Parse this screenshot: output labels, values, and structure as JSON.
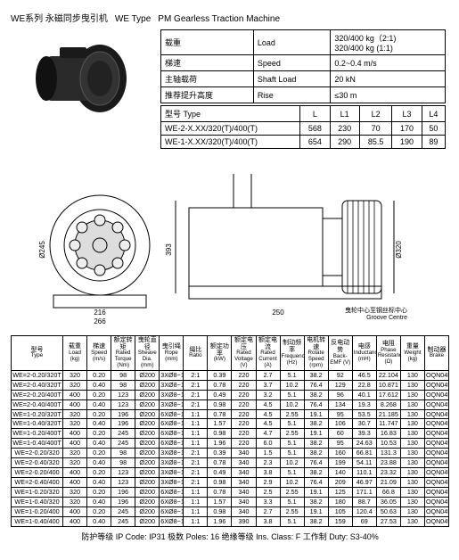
{
  "title": {
    "series": "WE系列 永磁同步曳引机",
    "type_label": "WE   Type",
    "en": "PM Gearless Traction Machine"
  },
  "spec": {
    "rows": [
      {
        "cn": "载重",
        "en": "Load",
        "val": "320/400 kg（2:1)\n320/400 kg (1:1)"
      },
      {
        "cn": "梯速",
        "en": "Speed",
        "val": "0.2~0.4 m/s"
      },
      {
        "cn": "主轴载荷",
        "en": "Shaft Load",
        "val": "20 kN"
      },
      {
        "cn": "推荐提升高度",
        "en": "Rise",
        "val": "≤30 m"
      }
    ],
    "dim_header": {
      "cn": "型号 Type",
      "cols": [
        "L",
        "L1",
        "L2",
        "L3",
        "L4"
      ]
    },
    "dim_rows": [
      {
        "type": "WE-2-X.XX/320(T)/400(T)",
        "v": [
          "568",
          "230",
          "70",
          "170",
          "50"
        ]
      },
      {
        "type": "WE-1-X.XX/320(T)/400(T)",
        "v": [
          "654",
          "290",
          "85.5",
          "190",
          "89"
        ]
      }
    ]
  },
  "diagram_labels": {
    "dims": [
      "393",
      "Ø320",
      "266",
      "Ø245",
      "216",
      "250",
      "Ø200"
    ],
    "note_cn": "曳轮中心至钢丝标中心",
    "note_en": "Groove Centre"
  },
  "data": {
    "headers": [
      {
        "cn": "型号",
        "en": "Type"
      },
      {
        "cn": "载重",
        "en": "Load (kg)"
      },
      {
        "cn": "梯速",
        "en": "Speed (m/s)"
      },
      {
        "cn": "额定转矩",
        "en": "Rated Torque (Nm)"
      },
      {
        "cn": "曳轮直径",
        "en": "Sheave Dia. (mm)"
      },
      {
        "cn": "曳引绳",
        "en": "Rope (mm)"
      },
      {
        "cn": "绳比",
        "en": "Ratio"
      },
      {
        "cn": "额定功率",
        "en": "(kW)"
      },
      {
        "cn": "额定电压",
        "en": "Rated Voltage (V)"
      },
      {
        "cn": "额定电流",
        "en": "Rated Current (A)"
      },
      {
        "cn": "制动频率",
        "en": "Frequency (Hz)"
      },
      {
        "cn": "电机转速",
        "en": "Rotate Speed (rpm)"
      },
      {
        "cn": "反电动势",
        "en": "Back-EMF (V)"
      },
      {
        "cn": "电感",
        "en": "Inductance (mH)"
      },
      {
        "cn": "电阻",
        "en": "Phase Resistance (Ω)"
      },
      {
        "cn": "重量",
        "en": "Weight (kg)"
      },
      {
        "cn": "制动器",
        "en": "Brake"
      }
    ],
    "rows": [
      [
        "WE=2-0.20/320T",
        "320",
        "0.20",
        "98",
        "Ø200",
        "3XØ8~13",
        "2:1",
        "0.39",
        "220",
        "2.7",
        "5.1",
        "38.2",
        "92",
        "46.5",
        "22.104",
        "130",
        "OQN045"
      ],
      [
        "WE=2-0.40/320T",
        "320",
        "0.40",
        "98",
        "Ø200",
        "3XØ8~13",
        "2:1",
        "0.78",
        "220",
        "3.7",
        "10.2",
        "76.4",
        "129",
        "22.8",
        "10.871",
        "130",
        "OQN045"
      ],
      [
        "WE=2-0.20/400T",
        "400",
        "0.20",
        "123",
        "Ø200",
        "3XØ8~13",
        "2:1",
        "0.49",
        "220",
        "3.2",
        "5.1",
        "38.2",
        "96",
        "40.1",
        "17.612",
        "130",
        "OQN045"
      ],
      [
        "WE=2-0.40/400T",
        "400",
        "0.40",
        "123",
        "Ø200",
        "3XØ8~13",
        "2:1",
        "0.98",
        "220",
        "4.5",
        "10.2",
        "76.4",
        "134",
        "19.3",
        "8.268",
        "130",
        "OQN045"
      ],
      [
        "WE=1-0.20/320T",
        "320",
        "0.20",
        "196",
        "Ø200",
        "6XØ8~13",
        "1:1",
        "0.78",
        "220",
        "4.5",
        "2.55",
        "19.1",
        "95",
        "53.5",
        "21.185",
        "130",
        "OQN045"
      ],
      [
        "WE=1-0.40/320T",
        "320",
        "0.40",
        "196",
        "Ø200",
        "6XØ8~13",
        "1:1",
        "1.57",
        "220",
        "4.5",
        "5.1",
        "38.2",
        "106",
        "30.7",
        "11.747",
        "130",
        "OQN045"
      ],
      [
        "WE=1-0.20/400T",
        "400",
        "0.20",
        "245",
        "Ø200",
        "6XØ8~13",
        "1:1",
        "0.98",
        "220",
        "4.7",
        "2.55",
        "19.1",
        "60",
        "39.3",
        "16.83",
        "130",
        "OQN045"
      ],
      [
        "WE=1-0.40/400T",
        "400",
        "0.40",
        "245",
        "Ø200",
        "6XØ8~13",
        "1:1",
        "1.96",
        "220",
        "6.0",
        "5.1",
        "38.2",
        "95",
        "24.63",
        "10.53",
        "130",
        "OQN045"
      ],
      [
        "WE=2-0.20/320",
        "320",
        "0.20",
        "98",
        "Ø200",
        "3XØ8~13",
        "2:1",
        "0.39",
        "340",
        "1.5",
        "5.1",
        "38.2",
        "160",
        "66.81",
        "131.3",
        "130",
        "OQN045"
      ],
      [
        "WE=2-0.40/320",
        "320",
        "0.40",
        "98",
        "Ø200",
        "3XØ8~13",
        "2:1",
        "0.78",
        "340",
        "2.3",
        "10.2",
        "76.4",
        "199",
        "54.11",
        "23.88",
        "130",
        "OQN045"
      ],
      [
        "WE=2-0.20/400",
        "400",
        "0.20",
        "123",
        "Ø200",
        "3XØ8~13",
        "2:1",
        "0.49",
        "340",
        "3.8",
        "5.1",
        "38.2",
        "140",
        "110.1",
        "23.32",
        "130",
        "OQN045"
      ],
      [
        "WE=2-0.40/400",
        "400",
        "0.40",
        "123",
        "Ø200",
        "3XØ8~13",
        "2:1",
        "0.98",
        "340",
        "2.9",
        "10.2",
        "76.4",
        "209",
        "46.97",
        "21.09",
        "130",
        "OQN045"
      ],
      [
        "WE=1-0.20/320",
        "320",
        "0.20",
        "196",
        "Ø200",
        "6XØ8~13",
        "1:1",
        "0.78",
        "340",
        "2.5",
        "2.55",
        "19.1",
        "125",
        "171.1",
        "66.8",
        "130",
        "OQN045"
      ],
      [
        "WE=1-0.40/320",
        "320",
        "0.40",
        "196",
        "Ø200",
        "6XØ8~13",
        "1:1",
        "1.57",
        "340",
        "3.3",
        "5.1",
        "38.2",
        "180",
        "88.7",
        "36.05",
        "130",
        "OQN045"
      ],
      [
        "WE=1-0.20/400",
        "400",
        "0.20",
        "245",
        "Ø200",
        "6XØ8~13",
        "1:1",
        "0.98",
        "340",
        "2.7",
        "2.55",
        "19.1",
        "105",
        "120.4",
        "50.63",
        "130",
        "OQN045"
      ],
      [
        "WE=1-0.40/400",
        "400",
        "0.40",
        "245",
        "Ø200",
        "6XØ8~13",
        "1:1",
        "1.96",
        "390",
        "3.8",
        "5.1",
        "38.2",
        "159",
        "69",
        "27.53",
        "130",
        "OQN045"
      ]
    ]
  },
  "footer": "防护等级 IP Code: IP31   极数 Poles: 16   绝缘等级 Ins. Class: F   工作制 Duty: S3-40%"
}
